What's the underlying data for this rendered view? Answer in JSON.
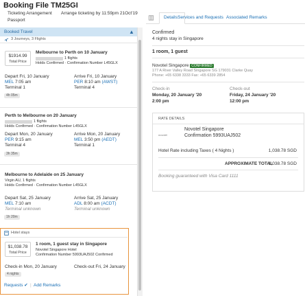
{
  "header": {
    "title": "Booking File TM25GI",
    "ticketing_label": "Ticketing Arrangement",
    "ticketing_value": "Arrange ticketing by 11:59pm 21Oct'19",
    "passport_label": "Passport"
  },
  "left": {
    "booked_travel": "Booked Travel",
    "summary": "3 Journeys, 3 Flights",
    "flights": [
      {
        "title": "Melbourne to Perth on 10 January",
        "count": "1 flights",
        "holds": "Holds Confirmed · Confirmation Number L45GLX",
        "price": "$1914.99",
        "price_label": "Total Price",
        "depart": "Depart Fri, 10 January",
        "depart_code": "MEL",
        "depart_time": "7:05 am",
        "depart_terminal": "Terminal 1",
        "arrive": "Arrive Fri, 10 January",
        "arrive_code": "PER",
        "arrive_time": "8:10 am",
        "arrive_tz": "(AWST)",
        "arrive_terminal": "Terminal 4",
        "duration": "4h 05m"
      },
      {
        "title": "Perth to Melbourne on 20 January",
        "count": "1 flights",
        "holds": "Holds Confirmed · Confirmation Number L45GLX",
        "depart": "Depart Mon, 20 January",
        "depart_code": "PER",
        "depart_time": "9:15 am",
        "depart_terminal": "Terminal 4",
        "arrive": "Arrive Mon, 20 January",
        "arrive_code": "MEL",
        "arrive_time": "3:50 pm",
        "arrive_tz": "(AEDT)",
        "arrive_terminal": "Terminal 1",
        "duration": "3h 35m"
      },
      {
        "title": "Melbourne to Adelaide on 25 January",
        "count": "Virgin AU, 1 flights",
        "holds": "Holds Confirmed · Confirmation Number L45GLX",
        "depart": "Depart Sat, 25 January",
        "depart_code": "MEL",
        "depart_time": "7:10 am",
        "depart_terminal": "Terminal unknown",
        "arrive": "Arrive Sat, 25 January",
        "arrive_code": "ADL",
        "arrive_time": "8:00 am",
        "arrive_tz": "(ACDT)",
        "arrive_terminal": "Terminal unknown",
        "duration": "1h 20m"
      }
    ],
    "hotel": {
      "section": "Hotel stays",
      "price": "$1,038.78",
      "price_label": "Total Price",
      "title": "1 room, 1 guest stay in Singapore",
      "name": "Novotel Singapore Hotel",
      "confirmation": "Confirmation Number 5993UAJ502 Confirmed",
      "checkin": "Check-in Mon, 20 January",
      "checkout": "Check-out Fri, 24 January",
      "nights": "4 nights",
      "requests": "Requests",
      "add_remarks": "Add Remarks"
    }
  },
  "right": {
    "tabs": [
      "Details",
      "Services and Requests",
      "Associated Remarks"
    ],
    "status": "Confirmed",
    "stay": "4 nights stay in Singapore",
    "room": "1 room, 1 guest",
    "hotel_name": "Novotel Singapore",
    "hotel_badge": "CONFIRMED",
    "address": "177 A River Valley Road Singapore SG 179031 Clarke Quay",
    "phone": "Phone: +65 6338 3333 Fax: +65 6339 2854",
    "checkin_label": "Check-in",
    "checkin_date": "Monday, 20 January '20",
    "checkin_time": "2:00 pm",
    "checkout_label": "Check-out",
    "checkout_date": "Friday, 24 January '20",
    "checkout_time": "12:00 pm",
    "rate_details": "RATE DETAILS",
    "rate_hotel": "Novotel Singapore",
    "rate_conf": "Confirmation 5993UAJ502",
    "rate_line": "Hotel Rate including Taxes ( 4 Nights )",
    "rate_amount": "1,038.78 SGD",
    "approx_label": "APPROXIMATE TOTAL",
    "approx_amount": "1,038.78 SGD",
    "guarantee": "Booking guaranteed with Visa Card 1111",
    "logo_text": "novotel"
  },
  "colors": {
    "link": "#1a6fb5",
    "highlight": "#e8923a",
    "booked_bg": "#cfe4f4",
    "badge": "#2e7d32"
  }
}
